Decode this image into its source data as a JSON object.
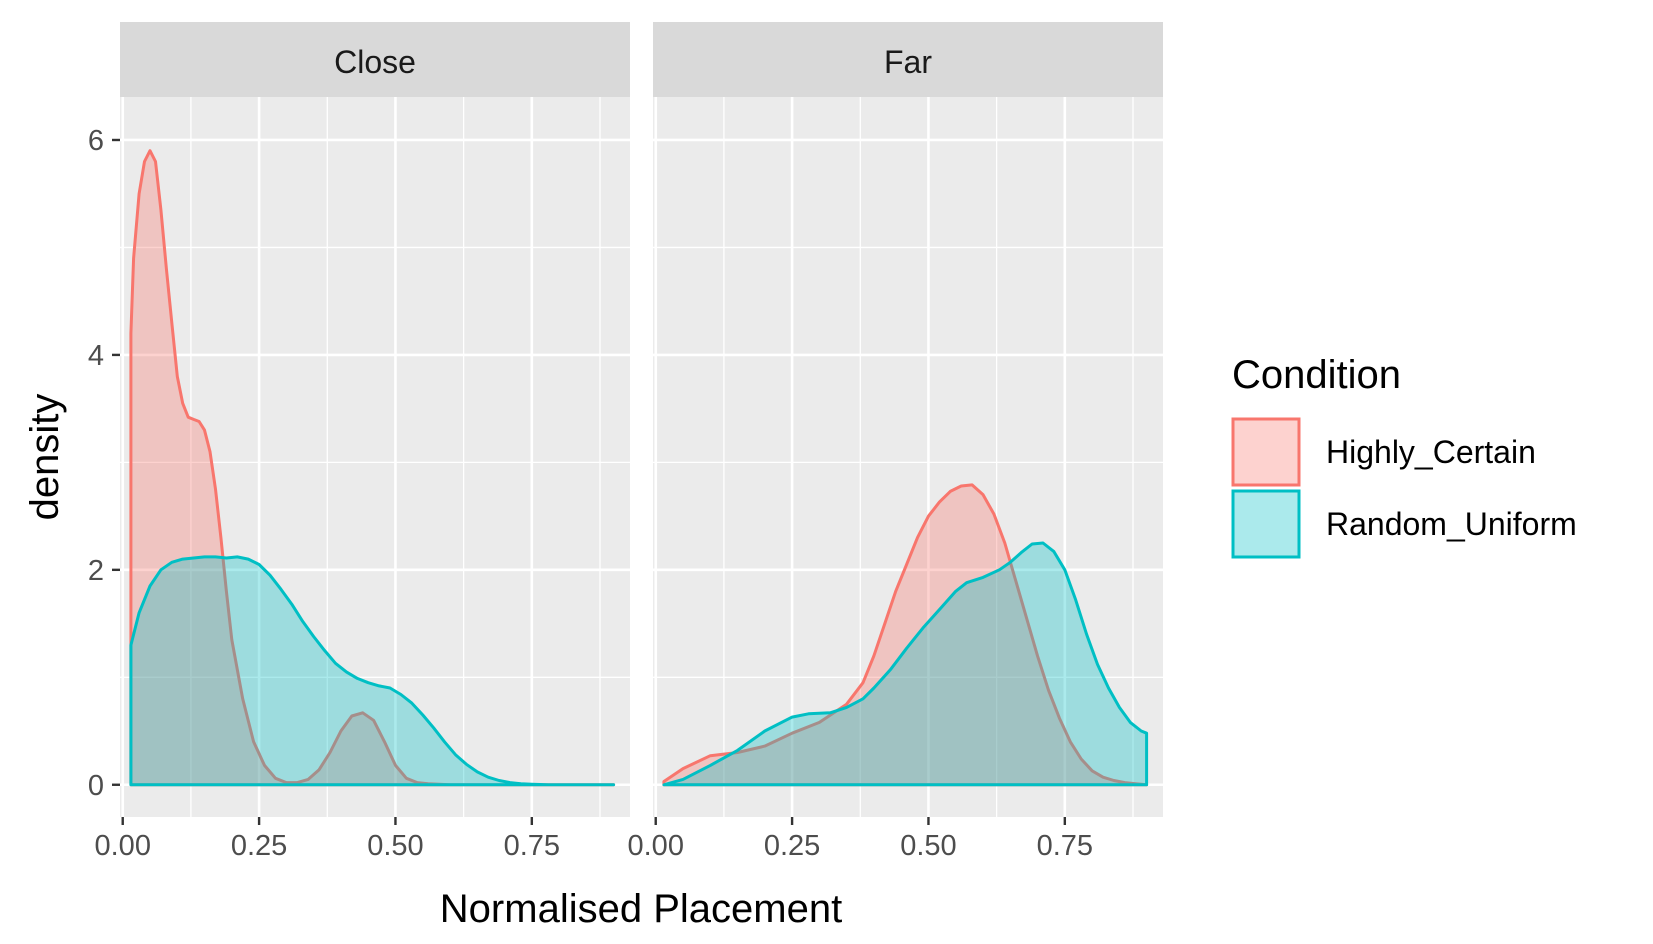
{
  "chart_data": {
    "type": "area",
    "xlabel": "Normalised Placement",
    "ylabel": "density",
    "xlim": [
      -0.005,
      0.93
    ],
    "ylim": [
      -0.3,
      6.4
    ],
    "xticks": [
      0,
      0.25,
      0.5,
      0.75
    ],
    "xtick_labels": [
      "0.00",
      "0.25",
      "0.50",
      "0.75"
    ],
    "yticks": [
      0,
      2,
      4,
      6
    ],
    "ytick_labels": [
      "0",
      "2",
      "4",
      "6"
    ],
    "grid": true,
    "legend": {
      "title": "Condition",
      "position": "right"
    },
    "colors": {
      "Highly_Certain": "#F8766D",
      "Random_Uniform": "#00BFC4"
    },
    "panels": [
      {
        "label": "Close",
        "series": [
          {
            "name": "Highly_Certain",
            "x": [
              0.015,
              0.02,
              0.03,
              0.04,
              0.05,
              0.06,
              0.07,
              0.08,
              0.09,
              0.1,
              0.11,
              0.12,
              0.13,
              0.14,
              0.15,
              0.16,
              0.17,
              0.18,
              0.19,
              0.2,
              0.22,
              0.24,
              0.26,
              0.28,
              0.3,
              0.32,
              0.34,
              0.36,
              0.38,
              0.4,
              0.42,
              0.44,
              0.46,
              0.48,
              0.5,
              0.52,
              0.54,
              0.56,
              0.6,
              0.7,
              0.8,
              0.9
            ],
            "y": [
              4.2,
              4.9,
              5.5,
              5.8,
              5.9,
              5.8,
              5.35,
              4.8,
              4.3,
              3.8,
              3.55,
              3.42,
              3.4,
              3.38,
              3.3,
              3.1,
              2.75,
              2.3,
              1.8,
              1.35,
              0.8,
              0.4,
              0.18,
              0.06,
              0.02,
              0.02,
              0.05,
              0.14,
              0.3,
              0.5,
              0.64,
              0.67,
              0.6,
              0.4,
              0.18,
              0.06,
              0.02,
              0.01,
              0,
              0,
              0,
              0
            ]
          },
          {
            "name": "Random_Uniform",
            "x": [
              0.015,
              0.03,
              0.05,
              0.07,
              0.09,
              0.11,
              0.13,
              0.15,
              0.17,
              0.19,
              0.21,
              0.23,
              0.25,
              0.27,
              0.29,
              0.31,
              0.33,
              0.35,
              0.37,
              0.39,
              0.41,
              0.43,
              0.45,
              0.47,
              0.49,
              0.51,
              0.53,
              0.55,
              0.57,
              0.59,
              0.61,
              0.63,
              0.65,
              0.67,
              0.69,
              0.71,
              0.73,
              0.75,
              0.78,
              0.82,
              0.86,
              0.9
            ],
            "y": [
              1.3,
              1.6,
              1.85,
              2.0,
              2.07,
              2.1,
              2.11,
              2.12,
              2.12,
              2.11,
              2.12,
              2.1,
              2.05,
              1.95,
              1.82,
              1.68,
              1.52,
              1.38,
              1.25,
              1.13,
              1.05,
              0.99,
              0.95,
              0.92,
              0.9,
              0.84,
              0.76,
              0.65,
              0.53,
              0.4,
              0.28,
              0.19,
              0.12,
              0.07,
              0.04,
              0.02,
              0.01,
              0.005,
              0,
              0,
              0,
              0
            ]
          }
        ]
      },
      {
        "label": "Far",
        "series": [
          {
            "name": "Highly_Certain",
            "x": [
              0.015,
              0.05,
              0.1,
              0.15,
              0.2,
              0.25,
              0.3,
              0.35,
              0.38,
              0.4,
              0.42,
              0.44,
              0.46,
              0.48,
              0.5,
              0.52,
              0.54,
              0.56,
              0.58,
              0.6,
              0.62,
              0.64,
              0.66,
              0.68,
              0.7,
              0.72,
              0.74,
              0.76,
              0.78,
              0.8,
              0.82,
              0.84,
              0.86,
              0.88,
              0.9
            ],
            "y": [
              0.03,
              0.15,
              0.27,
              0.3,
              0.36,
              0.48,
              0.58,
              0.75,
              0.95,
              1.2,
              1.5,
              1.8,
              2.05,
              2.3,
              2.5,
              2.63,
              2.73,
              2.78,
              2.79,
              2.7,
              2.52,
              2.25,
              1.9,
              1.55,
              1.2,
              0.88,
              0.62,
              0.4,
              0.24,
              0.13,
              0.07,
              0.04,
              0.02,
              0.01,
              0.0
            ]
          },
          {
            "name": "Random_Uniform",
            "x": [
              0.015,
              0.05,
              0.1,
              0.15,
              0.2,
              0.25,
              0.28,
              0.32,
              0.35,
              0.38,
              0.4,
              0.43,
              0.46,
              0.49,
              0.52,
              0.55,
              0.57,
              0.6,
              0.63,
              0.65,
              0.67,
              0.69,
              0.71,
              0.73,
              0.75,
              0.77,
              0.79,
              0.81,
              0.83,
              0.85,
              0.87,
              0.89,
              0.9
            ],
            "y": [
              0,
              0.05,
              0.18,
              0.32,
              0.5,
              0.63,
              0.66,
              0.67,
              0.72,
              0.8,
              0.9,
              1.07,
              1.27,
              1.46,
              1.63,
              1.8,
              1.88,
              1.93,
              2.0,
              2.07,
              2.16,
              2.24,
              2.25,
              2.17,
              2.0,
              1.72,
              1.4,
              1.12,
              0.9,
              0.72,
              0.58,
              0.5,
              0.48
            ]
          }
        ]
      }
    ]
  }
}
